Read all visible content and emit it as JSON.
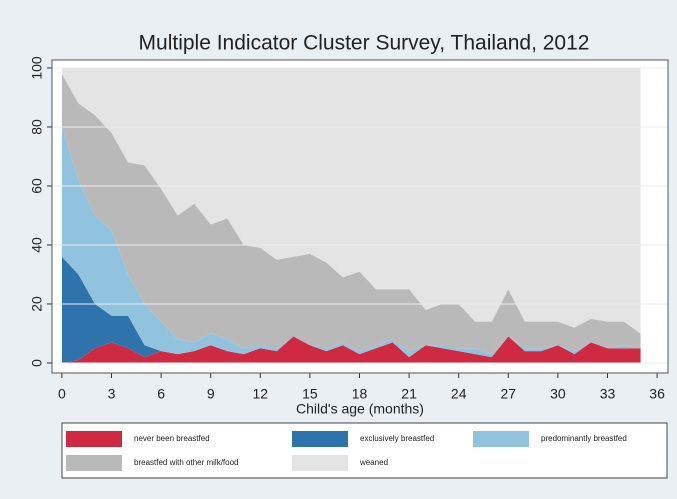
{
  "chart_data": {
    "type": "stacked_area",
    "title": "Multiple Indicator Cluster Survey, Thailand, 2012",
    "x_label": "Child's age (months)",
    "x": [
      0,
      1,
      2,
      3,
      4,
      5,
      6,
      7,
      8,
      9,
      10,
      11,
      12,
      13,
      14,
      15,
      16,
      17,
      18,
      19,
      20,
      21,
      22,
      23,
      24,
      25,
      26,
      27,
      28,
      29,
      30,
      31,
      32,
      33,
      34,
      35
    ],
    "series": [
      {
        "name": "never been breastfed",
        "color": "#cf2a41",
        "values": [
          0,
          1,
          5,
          7,
          5,
          2,
          4,
          3,
          4,
          6,
          4,
          3,
          5,
          4,
          9,
          6,
          4,
          6,
          3,
          5,
          7,
          2,
          6,
          5,
          4,
          3,
          2,
          9,
          4,
          4,
          6,
          3,
          7,
          5,
          5,
          5
        ]
      },
      {
        "name": "exclusively breastfed",
        "color": "#2f73ad",
        "values": [
          36,
          29,
          15,
          9,
          11,
          4,
          0,
          0,
          0,
          0,
          0,
          0,
          0,
          0,
          0,
          0,
          0,
          0,
          0,
          0,
          0,
          0,
          0,
          0,
          0,
          0,
          0,
          0,
          0,
          0,
          0,
          0,
          0,
          0,
          0,
          0
        ]
      },
      {
        "name": "predominantly breastfed",
        "color": "#92c3de",
        "values": [
          44,
          32,
          30,
          29,
          14,
          14,
          10,
          5,
          3,
          4,
          4,
          2,
          1,
          1,
          0,
          0,
          1,
          1,
          1,
          1,
          1,
          2,
          0,
          1,
          1,
          2,
          1,
          0,
          1,
          1,
          0,
          1,
          0,
          0,
          1,
          0
        ]
      },
      {
        "name": "breastfed with other milk/food",
        "color": "#b9b9b9",
        "values": [
          18,
          26,
          34,
          33,
          38,
          47,
          45,
          42,
          47,
          37,
          41,
          35,
          33,
          30,
          27,
          31,
          29,
          22,
          27,
          19,
          17,
          21,
          12,
          14,
          15,
          9,
          11,
          16,
          9,
          9,
          8,
          8,
          8,
          9,
          8,
          5
        ]
      },
      {
        "name": "weaned",
        "color": "#e4e4e4",
        "values": [
          2,
          12,
          16,
          22,
          32,
          33,
          41,
          50,
          46,
          53,
          51,
          60,
          61,
          65,
          64,
          63,
          66,
          71,
          69,
          75,
          75,
          75,
          82,
          80,
          80,
          86,
          86,
          75,
          86,
          86,
          86,
          88,
          85,
          86,
          86,
          90
        ]
      }
    ],
    "xlim": [
      -0.6,
      36.66
    ],
    "ylim": [
      -3.4,
      102.7
    ],
    "xticks": [
      0,
      3,
      6,
      9,
      12,
      15,
      18,
      21,
      24,
      27,
      30,
      33,
      36
    ],
    "yticks": [
      0,
      20,
      40,
      60,
      80,
      100
    ],
    "grid": true
  }
}
